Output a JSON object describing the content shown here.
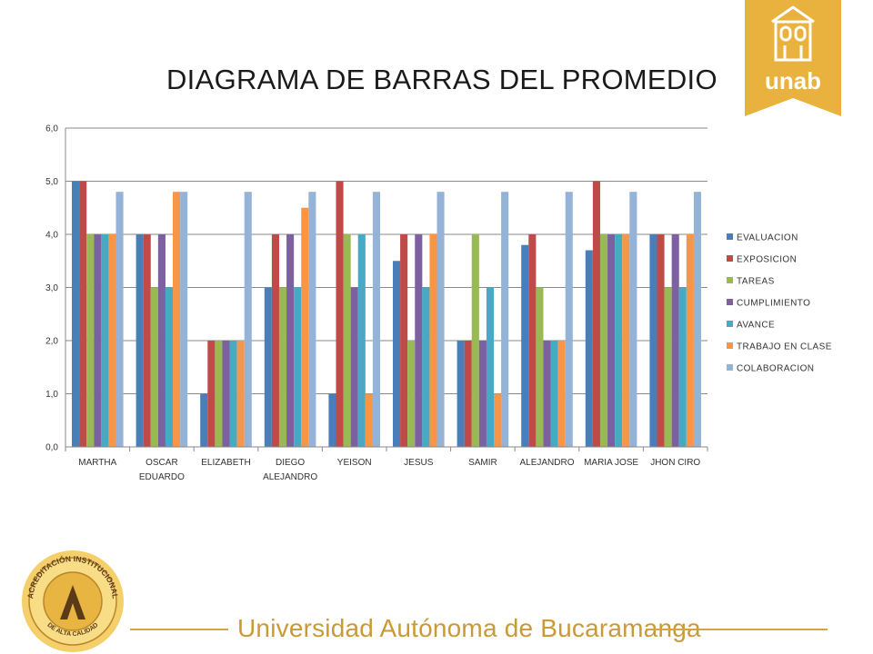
{
  "slide": {
    "title": "DIAGRAMA DE BARRAS DEL PROMEDIO",
    "logo_text": "unab",
    "seal_text_top": "ACREDITACIÓN INSTITUCIONAL",
    "seal_text_bottom": "DE ALTA CALIDAD",
    "footer": "Universidad Autónoma de Bucaramanga"
  },
  "colors": {
    "brand_gold": "#e9b23e",
    "footer_gold": "#c99a36",
    "grid": "#8a8a8a"
  },
  "chart_data": {
    "type": "bar",
    "categories": [
      "MARTHA",
      "OSCAR\nEDUARDO",
      "ELIZABETH",
      "DIEGO\nALEJANDRO",
      "YEISON",
      "JESUS",
      "SAMIR",
      "ALEJANDRO",
      "MARIA JOSE",
      "JHON CIRO"
    ],
    "ylim": [
      0,
      6
    ],
    "yticks": [
      "0,0",
      "1,0",
      "2,0",
      "3,0",
      "4,0",
      "5,0",
      "6,0"
    ],
    "grid": true,
    "legend_position": "right",
    "series": [
      {
        "name": "EVALUACION",
        "color": "#4a7ebb",
        "values": [
          5.0,
          4.0,
          1.0,
          3.0,
          1.0,
          3.5,
          2.0,
          3.8,
          3.7,
          4.0
        ]
      },
      {
        "name": "EXPOSICION",
        "color": "#be4b48",
        "values": [
          5.0,
          4.0,
          2.0,
          4.0,
          5.0,
          4.0,
          2.0,
          4.0,
          5.0,
          4.0
        ]
      },
      {
        "name": "TAREAS",
        "color": "#98b954",
        "values": [
          4.0,
          3.0,
          2.0,
          3.0,
          4.0,
          2.0,
          4.0,
          3.0,
          4.0,
          3.0
        ]
      },
      {
        "name": "CUMPLIMIENTO",
        "color": "#7d60a0",
        "values": [
          4.0,
          4.0,
          2.0,
          4.0,
          3.0,
          4.0,
          2.0,
          2.0,
          4.0,
          4.0
        ]
      },
      {
        "name": "AVANCE",
        "color": "#46aac5",
        "values": [
          4.0,
          3.0,
          2.0,
          3.0,
          4.0,
          3.0,
          3.0,
          2.0,
          4.0,
          3.0
        ]
      },
      {
        "name": "TRABAJO EN CLASE",
        "color": "#f79646",
        "values": [
          4.0,
          4.8,
          2.0,
          4.5,
          1.0,
          4.0,
          1.0,
          2.0,
          4.0,
          4.0
        ]
      },
      {
        "name": "COLABORACION",
        "color": "#95b3d7",
        "values": [
          4.8,
          4.8,
          4.8,
          4.8,
          4.8,
          4.8,
          4.8,
          4.8,
          4.8,
          4.8
        ]
      }
    ]
  }
}
